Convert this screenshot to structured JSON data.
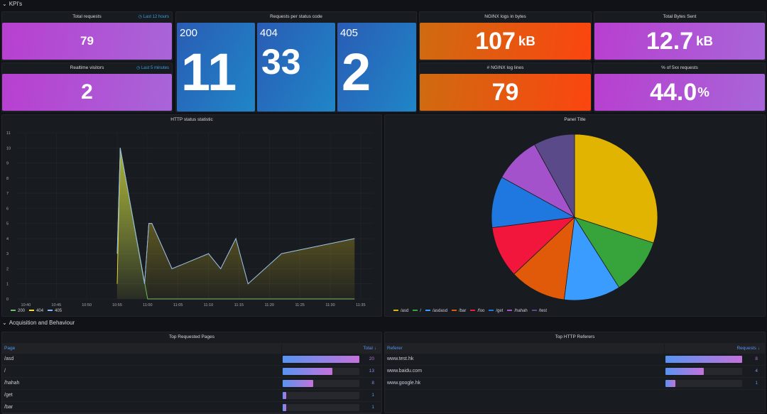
{
  "rows": {
    "kpis": "KPI's",
    "acq": "Acquisition and Behaviour"
  },
  "total_requests": {
    "title": "Total requests",
    "time": "Last 12 hours",
    "value": "79"
  },
  "realtime": {
    "title": "Realtime visitors",
    "time": "Last 5 minutes",
    "value": "2"
  },
  "status_codes": {
    "title": "Requests per status code",
    "tiles": [
      {
        "code": "200",
        "value": "11"
      },
      {
        "code": "404",
        "value": "33"
      },
      {
        "code": "405",
        "value": "2"
      }
    ]
  },
  "nginx_bytes": {
    "title": "NGINX logs in bytes",
    "value": "107",
    "unit": "kB"
  },
  "bytes_sent": {
    "title": "Total Bytes Sent",
    "value": "12.7",
    "unit": "kB"
  },
  "log_lines": {
    "title": "# NGINX log lines",
    "value": "79"
  },
  "pct_5xx": {
    "title": "% of 5xx requests",
    "value": "44.0",
    "unit": "%"
  },
  "chart_data": [
    {
      "type": "area",
      "title": "HTTP status statistic",
      "ylim": [
        0,
        11
      ],
      "yticks": [
        "0",
        "1",
        "2",
        "3",
        "4",
        "5",
        "6",
        "7",
        "8",
        "9",
        "10",
        "11"
      ],
      "xticks": [
        "10:40",
        "10:45",
        "10:50",
        "10:55",
        "11:00",
        "11:05",
        "11:10",
        "11:15",
        "11:20",
        "11:25",
        "11:30",
        "11:35"
      ],
      "xrange_minutes": [
        -2.5,
        57
      ],
      "series": [
        {
          "name": "200",
          "color": "#73bf69",
          "points": [
            [
              15,
              3
            ],
            [
              15.5,
              10
            ],
            [
              20,
              0
            ],
            [
              54,
              0
            ]
          ]
        },
        {
          "name": "404",
          "color": "#fade2a",
          "points": [
            [
              15,
              1
            ],
            [
              15.5,
              10
            ],
            [
              19.5,
              1
            ],
            [
              20.2,
              5
            ],
            [
              20.7,
              5
            ],
            [
              24,
              2
            ],
            [
              30,
              3
            ],
            [
              32,
              2
            ],
            [
              34.5,
              4
            ],
            [
              36.5,
              1
            ],
            [
              42,
              3
            ],
            [
              54,
              4
            ]
          ]
        },
        {
          "name": "405",
          "color": "#8ab8ff",
          "points": [
            [
              15,
              3
            ],
            [
              15.5,
              10
            ],
            [
              19.5,
              1
            ],
            [
              20.2,
              5
            ],
            [
              20.7,
              5
            ],
            [
              24,
              2
            ],
            [
              30,
              3
            ],
            [
              32,
              2
            ],
            [
              34.5,
              4
            ],
            [
              36.5,
              1
            ],
            [
              42,
              3
            ],
            [
              54,
              4
            ]
          ]
        }
      ]
    },
    {
      "type": "pie",
      "title": "Panel Title",
      "slices": [
        {
          "label": "/asd",
          "value": 30,
          "color": "#e0b400"
        },
        {
          "label": "/",
          "value": 11,
          "color": "#37a33b"
        },
        {
          "label": "/asdasd",
          "value": 11,
          "color": "#3a9cff"
        },
        {
          "label": "/bar",
          "value": 11,
          "color": "#e05a0a"
        },
        {
          "label": "/foo",
          "value": 10,
          "color": "#f2163c"
        },
        {
          "label": "/get",
          "value": 10,
          "color": "#1f78e0"
        },
        {
          "label": "/hahah",
          "value": 9,
          "color": "#a352cc"
        },
        {
          "label": "/test",
          "value": 8,
          "color": "#5b4a8a"
        }
      ]
    }
  ],
  "pages": {
    "title": "Top Requested Pages",
    "col1": "Page",
    "col2": "Total ↓",
    "max": 20,
    "rows": [
      {
        "name": "/asd",
        "value": 20
      },
      {
        "name": "/",
        "value": 13
      },
      {
        "name": "/hahah",
        "value": 8
      },
      {
        "name": "/get",
        "value": 1
      },
      {
        "name": "/bar",
        "value": 1
      }
    ]
  },
  "referers": {
    "title": "Top HTTP Referers",
    "col1": "Referer",
    "col2": "Requests ↓",
    "max": 8,
    "rows": [
      {
        "name": "www.test.hk",
        "value": 8
      },
      {
        "name": "www.baidu.com",
        "value": 4
      },
      {
        "name": "www.google.hk",
        "value": 1
      }
    ]
  }
}
